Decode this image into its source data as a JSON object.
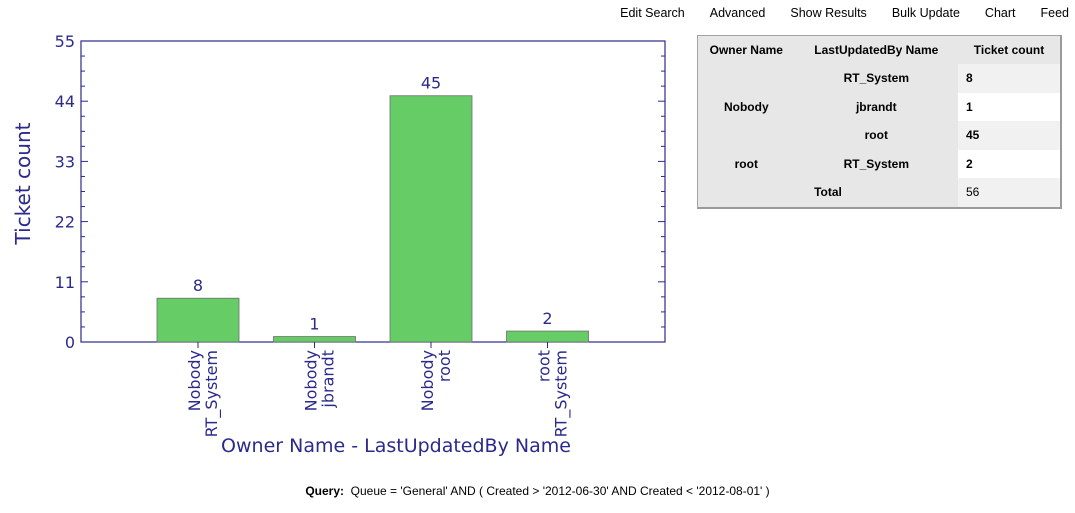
{
  "nav": {
    "edit_search": "Edit Search",
    "advanced": "Advanced",
    "show_results": "Show Results",
    "bulk_update": "Bulk Update",
    "chart": "Chart",
    "feed": "Feed"
  },
  "chart_data": {
    "type": "bar",
    "categories": [
      [
        "Nobody",
        "RT_System"
      ],
      [
        "Nobody",
        "jbrandt"
      ],
      [
        "Nobody",
        "root"
      ],
      [
        "root",
        "RT_System"
      ]
    ],
    "values": [
      8,
      1,
      45,
      2
    ],
    "xlabel": "Owner Name - LastUpdatedBy Name",
    "ylabel": "Ticket count",
    "ylim": [
      0,
      55
    ],
    "yticks": [
      0,
      11,
      22,
      33,
      44,
      55
    ],
    "bar_color": "#66cc66",
    "text_color": "#2b2a8c"
  },
  "table": {
    "headers": [
      "Owner Name",
      "LastUpdatedBy Name",
      "Ticket count"
    ],
    "groups": [
      {
        "owner": "Nobody",
        "rows": [
          {
            "updater": "RT_System",
            "count": "8"
          },
          {
            "updater": "jbrandt",
            "count": "1"
          },
          {
            "updater": "root",
            "count": "45"
          }
        ]
      },
      {
        "owner": "root",
        "rows": [
          {
            "updater": "RT_System",
            "count": "2"
          }
        ]
      }
    ],
    "total_label": "Total",
    "total_value": "56"
  },
  "query": {
    "label": "Query:",
    "text": "Queue = 'General' AND ( Created > '2012-06-30' AND Created < '2012-08-01' )"
  }
}
